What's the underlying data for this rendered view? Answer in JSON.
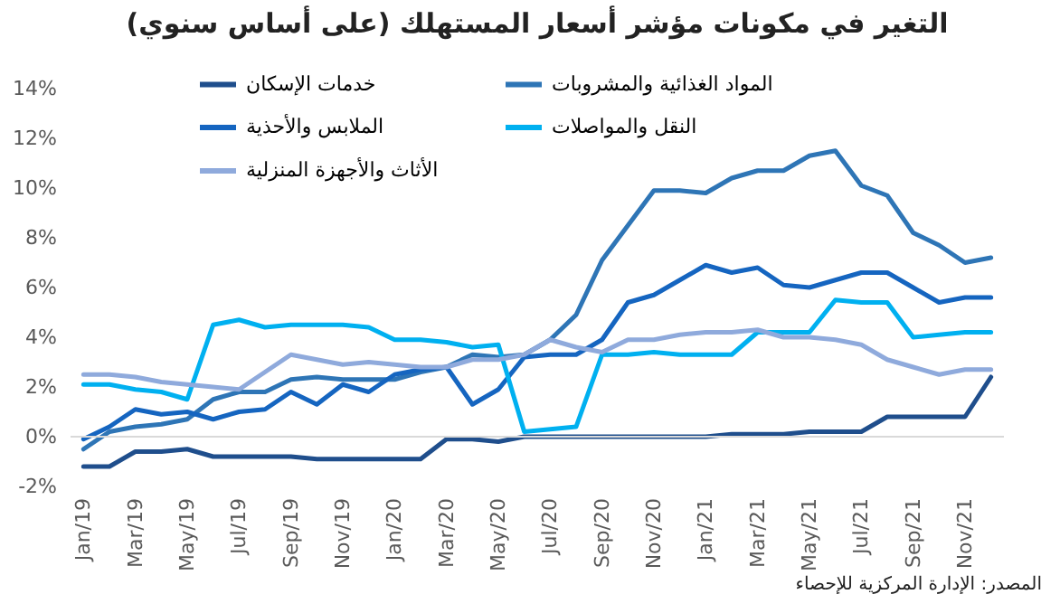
{
  "chart_data": {
    "type": "line",
    "title": "التغير في مكونات مؤشر أسعار المستهلك (على أساس سنوي)",
    "categories": [
      "Jan/19",
      null,
      "Mar/19",
      null,
      "May/19",
      null,
      "Jul/19",
      null,
      "Sep/19",
      null,
      "Nov/19",
      null,
      "Jan/20",
      null,
      "Mar/20",
      null,
      "May/20",
      null,
      "Jul/20",
      null,
      "Sep/20",
      null,
      "Nov/20",
      null,
      "Jan/21",
      null,
      "Mar/21",
      null,
      "May/21",
      null,
      "Jul/21",
      null,
      "Sep/21",
      null,
      "Nov/21",
      null
    ],
    "series": [
      {
        "name": "خدمات الإسكان",
        "color": "#1f4e8c",
        "values": [
          -1.2,
          -1.2,
          -0.6,
          -0.6,
          -0.5,
          -0.8,
          -0.8,
          -0.8,
          -0.8,
          -0.9,
          -0.9,
          -0.9,
          -0.9,
          -0.9,
          -0.1,
          -0.1,
          -0.2,
          0,
          0,
          0,
          0,
          0,
          0,
          0,
          0,
          0.1,
          0.1,
          0.1,
          0.2,
          0.2,
          0.2,
          0.8,
          0.8,
          0.8,
          0.8,
          2.4
        ]
      },
      {
        "name": "المواد الغذائية والمشروبات",
        "color": "#2e75b6",
        "values": [
          -0.5,
          0.2,
          0.4,
          0.5,
          0.7,
          1.5,
          1.8,
          1.8,
          2.3,
          2.4,
          2.3,
          2.3,
          2.3,
          2.6,
          2.8,
          3.3,
          3.2,
          3.3,
          3.9,
          4.9,
          7.1,
          8.5,
          9.9,
          9.9,
          9.8,
          10.4,
          10.7,
          10.7,
          11.3,
          11.5,
          10.1,
          9.7,
          8.2,
          7.7,
          7.0,
          7.2
        ]
      },
      {
        "name": "الملابس والأحذية",
        "color": "#1565c0",
        "values": [
          -0.1,
          0.4,
          1.1,
          0.9,
          1.0,
          0.7,
          1.0,
          1.1,
          1.8,
          1.3,
          2.1,
          1.8,
          2.5,
          2.7,
          2.8,
          1.3,
          1.9,
          3.2,
          3.3,
          3.3,
          3.9,
          5.4,
          5.7,
          6.3,
          6.9,
          6.6,
          6.8,
          6.1,
          6.0,
          6.3,
          6.6,
          6.6,
          6.0,
          5.4,
          5.6,
          5.6
        ]
      },
      {
        "name": "النقل والمواصلات",
        "color": "#00b0f0",
        "values": [
          2.1,
          2.1,
          1.9,
          1.8,
          1.5,
          4.5,
          4.7,
          4.4,
          4.5,
          4.5,
          4.5,
          4.4,
          3.9,
          3.9,
          3.8,
          3.6,
          3.7,
          0.2,
          0.3,
          0.4,
          3.3,
          3.3,
          3.4,
          3.3,
          3.3,
          3.3,
          4.2,
          4.2,
          4.2,
          5.5,
          5.4,
          5.4,
          4.0,
          4.1,
          4.2,
          4.2
        ]
      },
      {
        "name": "الأثاث والأجهزة المنزلية",
        "color": "#8faadc",
        "values": [
          2.5,
          2.5,
          2.4,
          2.2,
          2.1,
          2.0,
          1.9,
          2.6,
          3.3,
          3.1,
          2.9,
          3.0,
          2.9,
          2.8,
          2.8,
          3.1,
          3.1,
          3.3,
          3.9,
          3.6,
          3.4,
          3.9,
          3.9,
          4.1,
          4.2,
          4.2,
          4.3,
          4.0,
          4.0,
          3.9,
          3.7,
          3.1,
          2.8,
          2.5,
          2.7,
          2.7
        ]
      }
    ],
    "ylim": [
      -2,
      14
    ],
    "yticks": [
      {
        "value": -2,
        "label": "-2%"
      },
      {
        "value": 0,
        "label": "0%"
      },
      {
        "value": 2,
        "label": "2%"
      },
      {
        "value": 4,
        "label": "4%"
      },
      {
        "value": 6,
        "label": "6%"
      },
      {
        "value": 8,
        "label": "8%"
      },
      {
        "value": 10,
        "label": "10%"
      },
      {
        "value": 12,
        "label": "12%"
      },
      {
        "value": 14,
        "label": "14%"
      }
    ],
    "grid": false,
    "ref_lines": [
      {
        "axis": "y",
        "value": 0,
        "color": "#d9d9d9"
      }
    ],
    "legend": "top",
    "marker": "none",
    "line_style": "solid",
    "annotations": [
      "المصدر: الإدارة المركزية للإحصاء"
    ]
  }
}
